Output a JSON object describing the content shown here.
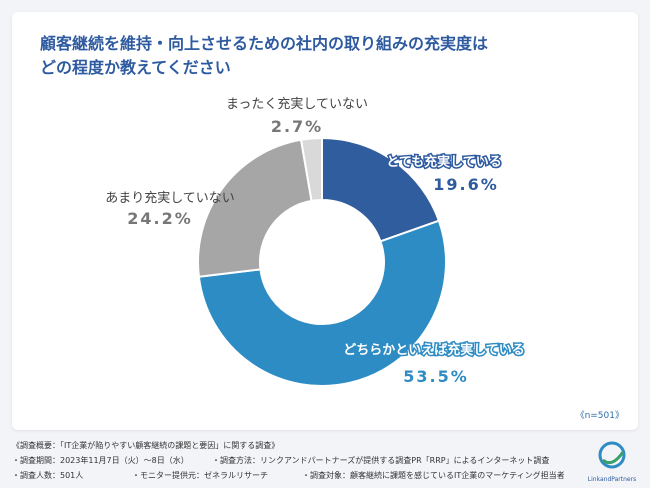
{
  "title_line1": "顧客継続を維持・向上させるための社内の取り組みの充実度は",
  "title_line2": "どの程度か教えてください",
  "n_label": "《n=501》",
  "footer": {
    "line1": "《調査概要：「IT企業が陥りやすい顧客継続の課題と要因」に関する調査》",
    "period": "・調査期間：2023年11月7日（火）〜8日（水）",
    "method": "・調査方法：リンクアンドパートナーズが提供する調査PR「RRP」によるインターネット調査",
    "count": "・調査人数：501人",
    "provider": "・モニター提供元：ゼネラルリサーチ",
    "target": "・調査対象：顧客継続に課題を感じているIT企業のマーケティング担当者"
  },
  "logo": {
    "text": "LinkandPartners"
  },
  "chart_data": {
    "type": "pie",
    "donut": true,
    "slices": [
      {
        "label": "とても充実している",
        "value": 19.6,
        "value_label": "19.6%",
        "color": "#2f5d9e"
      },
      {
        "label": "どちらかといえば充実している",
        "value": 53.5,
        "value_label": "53.5%",
        "color": "#2e8cc4"
      },
      {
        "label": "あまり充実していない",
        "value": 24.2,
        "value_label": "24.2%",
        "color": "#a6a6a6"
      },
      {
        "label": "まったく充実していない",
        "value": 2.7,
        "value_label": "2.7%",
        "color": "#d9d9d9"
      }
    ]
  }
}
